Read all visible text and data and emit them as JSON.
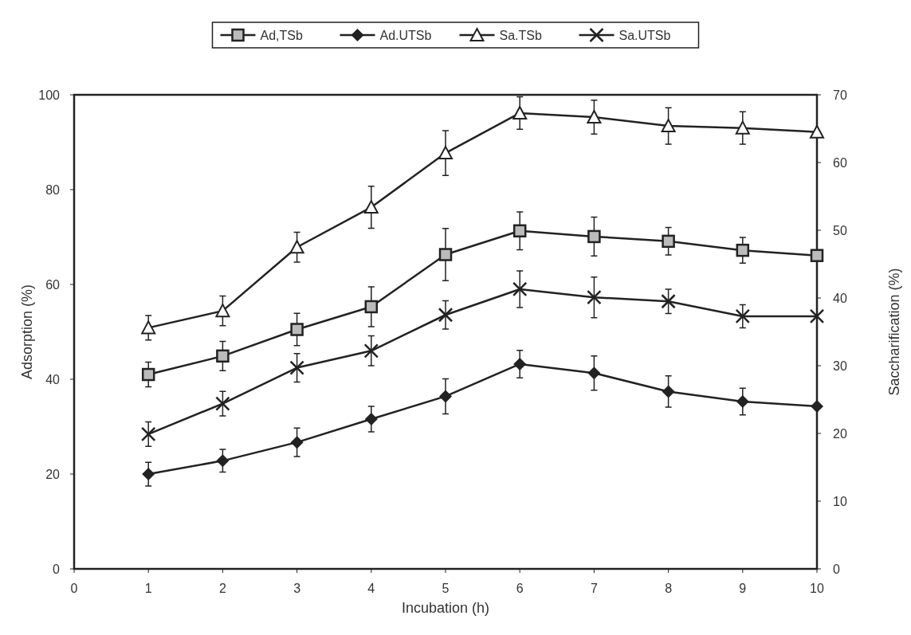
{
  "chart_data": {
    "type": "line",
    "xlabel": "Incubation (h)",
    "ylabel": "Adsorption (%)",
    "y2label": "Saccharification (%)",
    "x": [
      1,
      2,
      3,
      4,
      5,
      6,
      7,
      8,
      9,
      10
    ],
    "xlim": [
      0,
      10
    ],
    "xticks": [
      0,
      1,
      2,
      3,
      4,
      5,
      6,
      7,
      8,
      9,
      10
    ],
    "ylim": [
      0,
      100
    ],
    "yticks": [
      0,
      20,
      40,
      60,
      80,
      100
    ],
    "y2lim": [
      0,
      70
    ],
    "y2ticks": [
      0,
      10,
      20,
      30,
      40,
      50,
      60,
      70
    ],
    "legend": "top",
    "grid": false,
    "line_style": "solid",
    "series": [
      {
        "name": "Ad,TSb",
        "color": "#222222",
        "marker": "square",
        "values": [
          41.0,
          44.9,
          50.5,
          55.3,
          66.3,
          71.3,
          70.1,
          69.1,
          67.2,
          66.1
        ],
        "errors": [
          2.6,
          3.1,
          3.4,
          4.2,
          5.5,
          4.0,
          4.1,
          2.9,
          2.7,
          null
        ]
      },
      {
        "name": "Ad.UTSb",
        "color": "#222222",
        "marker": "diamond",
        "values": [
          20.0,
          22.8,
          26.7,
          31.6,
          36.4,
          43.2,
          41.3,
          37.4,
          35.3,
          34.3
        ],
        "errors": [
          2.5,
          2.4,
          3.0,
          2.7,
          3.7,
          2.9,
          3.6,
          3.3,
          2.8,
          null
        ]
      },
      {
        "name": "Sa.TSb",
        "color": "#222222",
        "marker": "triangle",
        "axis": "y2",
        "values": [
          35.6,
          38.1,
          47.5,
          53.4,
          61.4,
          67.3,
          66.7,
          65.4,
          65.1,
          64.5
        ],
        "errors": [
          1.8,
          2.2,
          2.2,
          3.1,
          3.3,
          2.4,
          2.5,
          2.7,
          2.4,
          null
        ]
      },
      {
        "name": "Sa.UTSb",
        "color": "#222222",
        "marker": "cross",
        "axis": "y2",
        "values": [
          19.9,
          24.4,
          29.7,
          32.2,
          37.5,
          41.3,
          40.1,
          39.5,
          37.3,
          37.3
        ],
        "errors": [
          1.8,
          1.8,
          2.1,
          2.2,
          2.1,
          2.7,
          3.0,
          1.8,
          1.7,
          null
        ]
      }
    ]
  }
}
